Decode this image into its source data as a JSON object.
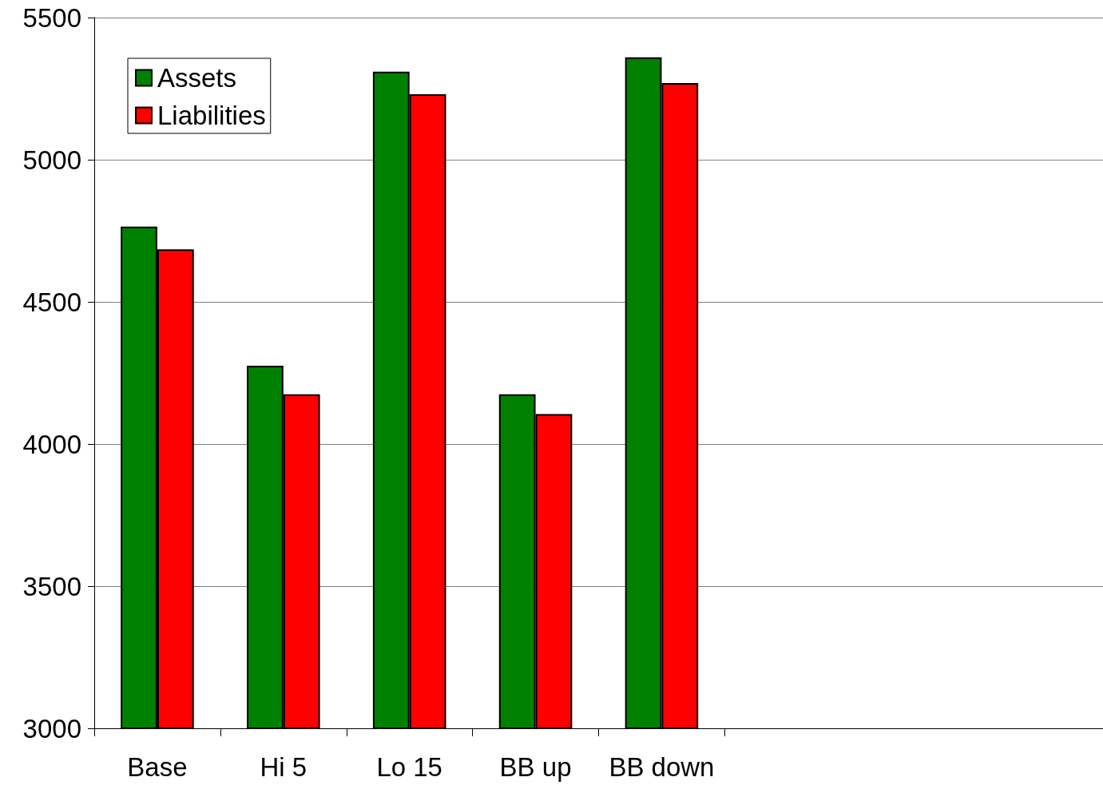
{
  "chart_data": {
    "type": "bar",
    "categories": [
      "Base",
      "Hi 5",
      "Lo 15",
      "BB up",
      "BB down",
      null,
      null,
      null
    ],
    "series": [
      {
        "name": "Assets",
        "color": "#008000",
        "values": [
          4765,
          4275,
          5310,
          4175,
          5360,
          null,
          null,
          null
        ]
      },
      {
        "name": "Liabilities",
        "color": "#ff0000",
        "values": [
          4685,
          4175,
          5230,
          4105,
          5270,
          null,
          null,
          null
        ]
      }
    ],
    "ylim": [
      3000,
      5500
    ],
    "yticks": [
      3000,
      3500,
      4000,
      4500,
      5000,
      5500
    ],
    "grid": "y",
    "legend": "top left"
  }
}
